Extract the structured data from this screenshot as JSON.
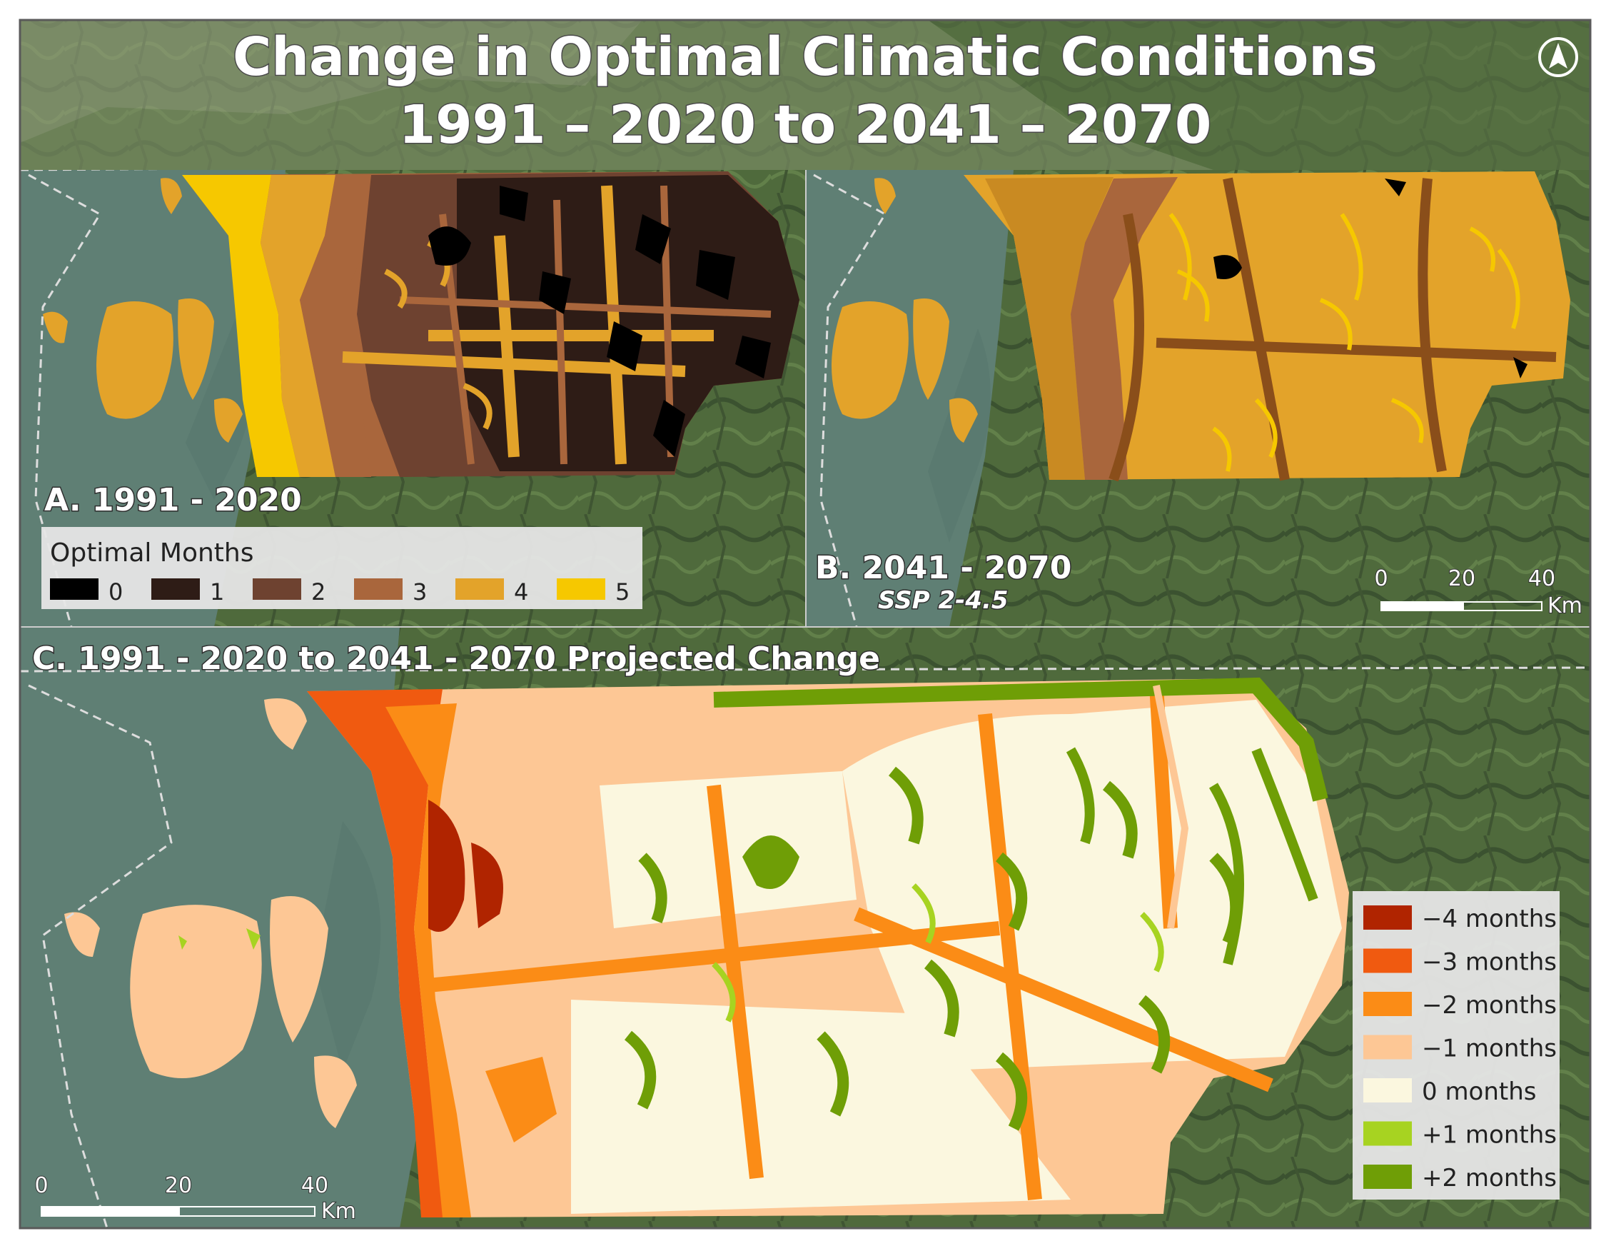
{
  "title": {
    "line1": "Change in Optimal Climatic Conditions",
    "line2": "1991 – 2020 to 2041 – 2070"
  },
  "north_arrow": {
    "icon": "north-arrow-icon"
  },
  "panel_a": {
    "label": "A. 1991 - 2020",
    "legend": {
      "title": "Optimal Months",
      "items": [
        {
          "label": "0",
          "color": "#000000"
        },
        {
          "label": "1",
          "color": "#2e1c16"
        },
        {
          "label": "2",
          "color": "#6e4230"
        },
        {
          "label": "3",
          "color": "#a9663c"
        },
        {
          "label": "4",
          "color": "#e3a32a"
        },
        {
          "label": "5",
          "color": "#f6c800"
        }
      ]
    }
  },
  "panel_b": {
    "label": "B. 2041 - 2070",
    "scenario": "SSP 2-4.5",
    "scale_bar": {
      "ticks": [
        "0",
        "20",
        "40"
      ],
      "unit": "Km"
    }
  },
  "panel_c": {
    "label": "C. 1991 - 2020 to 2041 - 2070 Projected Change",
    "legend": {
      "items": [
        {
          "label": "−4 months",
          "color": "#b02400"
        },
        {
          "label": "−3 months",
          "color": "#f05a10"
        },
        {
          "label": "−2 months",
          "color": "#fb8c16"
        },
        {
          "label": "−1 months",
          "color": "#fdc795"
        },
        {
          "label": "0 months",
          "color": "#fbf7df"
        },
        {
          "label": "+1 months",
          "color": "#a7d321"
        },
        {
          "label": "+2 months",
          "color": "#6f9e06"
        }
      ]
    },
    "scale_bar": {
      "ticks": [
        "0",
        "20",
        "40"
      ],
      "unit": "Km"
    }
  },
  "colors": {
    "water": "#5f7f74",
    "land": "#4e6b3e",
    "frame": "#5a5a5a"
  }
}
